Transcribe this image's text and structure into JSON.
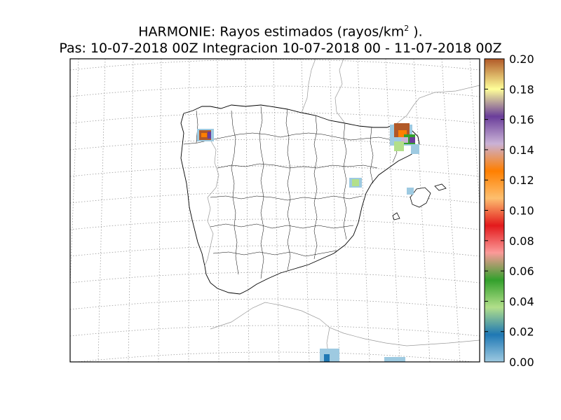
{
  "figure": {
    "title_line1_prefix": "HARMONIE: Rayos estimados  (rayos/km",
    "title_line1_sup": "2",
    "title_line1_suffix": " ).",
    "title_line2": "Pas: 10-07-2018 00Z Integracion 10-07-2018 00 - 11-07-2018 00Z"
  },
  "colorbar": {
    "ticks": [
      "0.00",
      "0.02",
      "0.04",
      "0.06",
      "0.08",
      "0.10",
      "0.12",
      "0.14",
      "0.16",
      "0.18",
      "0.20"
    ],
    "range": [
      0.0,
      0.2
    ],
    "colormap": [
      "#9ecae1",
      "#1f78b4",
      "#b2df8a",
      "#33a02c",
      "#fb9a99",
      "#e31a1c",
      "#fdbf6f",
      "#ff7f00",
      "#cab2d6",
      "#6a3d9a",
      "#ffff99",
      "#b15928"
    ]
  },
  "map": {
    "region": "Iberian Peninsula and Balearic Islands",
    "graticule": "dotted gray",
    "hotspots": [
      {
        "area": "Galicia",
        "level": 0.2
      },
      {
        "area": "Catalonia north-east",
        "level": 0.2
      },
      {
        "area": "Catalonia coast",
        "level": 0.06
      },
      {
        "area": "Castellon",
        "level": 0.04
      },
      {
        "area": "Mallorca",
        "level": 0.0
      },
      {
        "area": "North Africa",
        "level": 0.0
      }
    ]
  }
}
